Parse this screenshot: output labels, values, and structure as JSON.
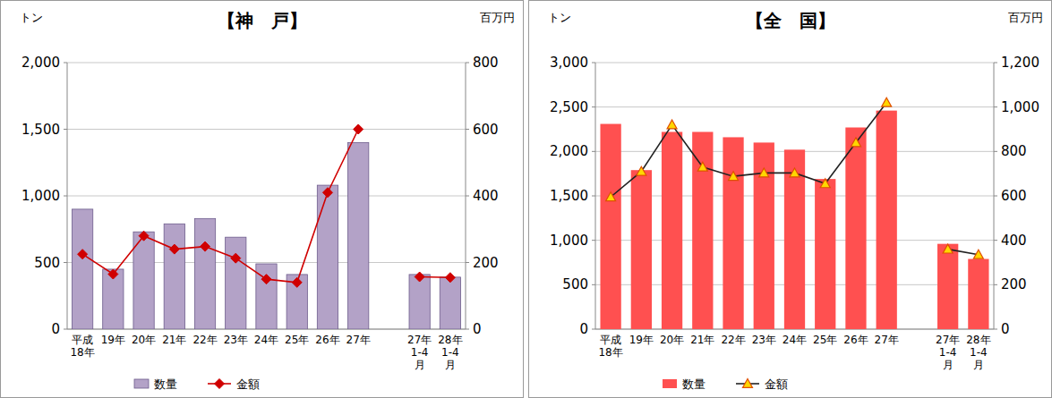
{
  "chart_data": [
    {
      "type": "bar",
      "title": "【神　戸】",
      "categories": [
        "平成\n18年",
        "19年",
        "20年",
        "21年",
        "22年",
        "23年",
        "24年",
        "25年",
        "26年",
        "27年",
        null,
        "27年\n1-4\n月",
        "28年\n1-4\n月"
      ],
      "series": [
        {
          "name": "数量",
          "type": "bar",
          "color": "#b3a2c7",
          "values": [
            900,
            450,
            730,
            790,
            830,
            690,
            490,
            410,
            1080,
            1400,
            null,
            410,
            390
          ]
        },
        {
          "name": "金額",
          "type": "line",
          "axis": "y2",
          "color": "#d00000",
          "marker": "diamond",
          "values": [
            225,
            165,
            280,
            240,
            248,
            213,
            150,
            140,
            410,
            600,
            null,
            157,
            155
          ]
        }
      ],
      "y_label": "トン",
      "y2_label": "百万円",
      "ylim": [
        0,
        2000
      ],
      "yticks": [
        0,
        500,
        {
          "value": 1000,
          "label": "1,000"
        },
        {
          "value": 1500,
          "label": "1,500"
        },
        {
          "value": 2000,
          "label": "2,000"
        }
      ],
      "y2lim": [
        0,
        800
      ],
      "y2ticks": [
        0,
        200,
        400,
        600,
        800
      ],
      "grid": true,
      "legend": "bottom"
    },
    {
      "type": "bar",
      "title": "【全　国】",
      "categories": [
        "平成\n18年",
        "19年",
        "20年",
        "21年",
        "22年",
        "23年",
        "24年",
        "25年",
        "26年",
        "27年",
        null,
        "27年\n1-4\n月",
        "28年\n1-4\n月"
      ],
      "series": [
        {
          "name": "数量",
          "type": "bar",
          "color": "#ff5050",
          "values": [
            2310,
            1790,
            2220,
            2220,
            2160,
            2100,
            2020,
            1690,
            2270,
            2460,
            null,
            960,
            790
          ]
        },
        {
          "name": "金額",
          "type": "line",
          "axis": "y2",
          "color": "#222222",
          "marker": "triangle",
          "values": [
            595,
            710,
            920,
            730,
            688,
            703,
            703,
            655,
            840,
            1020,
            null,
            360,
            335
          ]
        }
      ],
      "y_label": "トン",
      "y2_label": "百万円",
      "ylim": [
        0,
        3000
      ],
      "yticks": [
        0,
        500,
        {
          "value": 1000,
          "label": "1,000"
        },
        {
          "value": 1500,
          "label": "1,500"
        },
        {
          "value": 2000,
          "label": "2,000"
        },
        {
          "value": 2500,
          "label": "2,500"
        },
        {
          "value": 3000,
          "label": "3,000"
        }
      ],
      "y2lim": [
        0,
        1200
      ],
      "y2ticks": [
        0,
        200,
        400,
        600,
        800,
        {
          "value": 1000,
          "label": "1,000"
        },
        {
          "value": 1200,
          "label": "1,200"
        }
      ],
      "grid": true,
      "legend": "bottom"
    }
  ]
}
